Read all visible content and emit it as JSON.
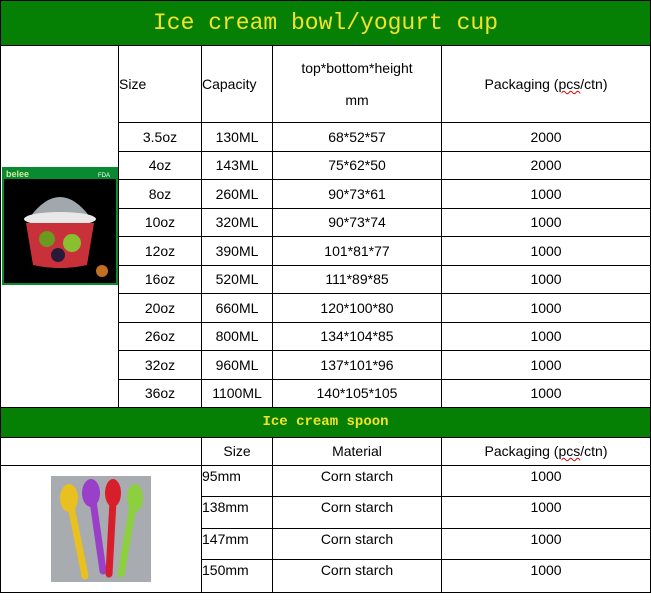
{
  "bowl": {
    "title": "Ice cream bowl/yogurt cup",
    "headers": {
      "size": "Size",
      "capacity": "Capacity",
      "dims_line1": "top*bottom*height",
      "dims_line2": "mm",
      "packaging_pre": "Packaging (",
      "packaging_sq": "pcs",
      "packaging_post": "/ctn)"
    },
    "image_logo": "belee",
    "image_badge": "FDA",
    "rows": [
      {
        "size": "3.5oz",
        "capacity": "130ML",
        "dims": "68*52*57",
        "packaging": "2000"
      },
      {
        "size": "4oz",
        "capacity": "143ML",
        "dims": "75*62*50",
        "packaging": "2000"
      },
      {
        "size": "8oz",
        "capacity": "260ML",
        "dims": "90*73*61",
        "packaging": "1000"
      },
      {
        "size": "10oz",
        "capacity": "320ML",
        "dims": "90*73*74",
        "packaging": "1000"
      },
      {
        "size": "12oz",
        "capacity": "390ML",
        "dims": "101*81*77",
        "packaging": "1000"
      },
      {
        "size": "16oz",
        "capacity": "520ML",
        "dims": "111*89*85",
        "packaging": "1000"
      },
      {
        "size": "20oz",
        "capacity": "660ML",
        "dims": "120*100*80",
        "packaging": "1000"
      },
      {
        "size": "26oz",
        "capacity": "800ML",
        "dims": "134*104*85",
        "packaging": "1000"
      },
      {
        "size": "32oz",
        "capacity": "960ML",
        "dims": "137*101*96",
        "packaging": "1000"
      },
      {
        "size": "36oz",
        "capacity": "1100ML",
        "dims": "140*105*105",
        "packaging": "1000"
      }
    ]
  },
  "spoon": {
    "title": "Ice cream spoon",
    "headers": {
      "size": "Size",
      "material": "Material",
      "packaging_pre": "Packaging (",
      "packaging_sq": "pcs",
      "packaging_post": "/ctn)"
    },
    "rows": [
      {
        "size": "95mm",
        "material": "Corn starch",
        "packaging": "1000"
      },
      {
        "size": "138mm",
        "material": "Corn starch",
        "packaging": "1000"
      },
      {
        "size": "147mm",
        "material": "Corn starch",
        "packaging": "1000"
      },
      {
        "size": "150mm",
        "material": "Corn starch",
        "packaging": "1000"
      }
    ]
  },
  "colors": {
    "banner_bg": "#058005",
    "banner_text": "#f4e12a"
  }
}
